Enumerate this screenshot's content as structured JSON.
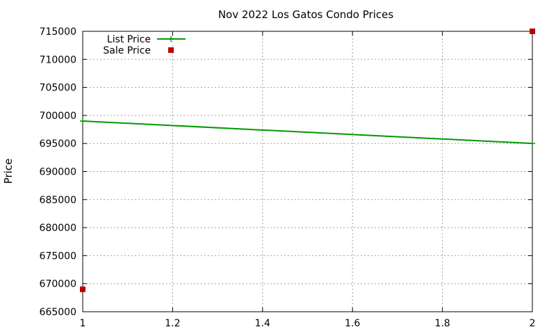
{
  "chart_data": {
    "type": "line",
    "title": "Nov 2022 Los Gatos Condo Prices",
    "xlabel": "",
    "ylabel": "Price",
    "xlim": [
      1,
      2
    ],
    "ylim": [
      665000,
      715000
    ],
    "x_ticks": [
      "1",
      "1.2",
      "1.4",
      "1.6",
      "1.8",
      "2"
    ],
    "y_ticks": [
      "665000",
      "670000",
      "675000",
      "680000",
      "685000",
      "690000",
      "695000",
      "700000",
      "705000",
      "710000",
      "715000"
    ],
    "grid": true,
    "legend_position": "top-left",
    "series": [
      {
        "name": "List Price",
        "style": "line-points",
        "color": "#009900",
        "x": [
          1,
          2
        ],
        "y": [
          699000,
          695000
        ]
      },
      {
        "name": "Sale Price",
        "style": "points",
        "color": "#bb0000",
        "x": [
          1,
          2
        ],
        "y": [
          669000,
          715000
        ]
      }
    ]
  }
}
